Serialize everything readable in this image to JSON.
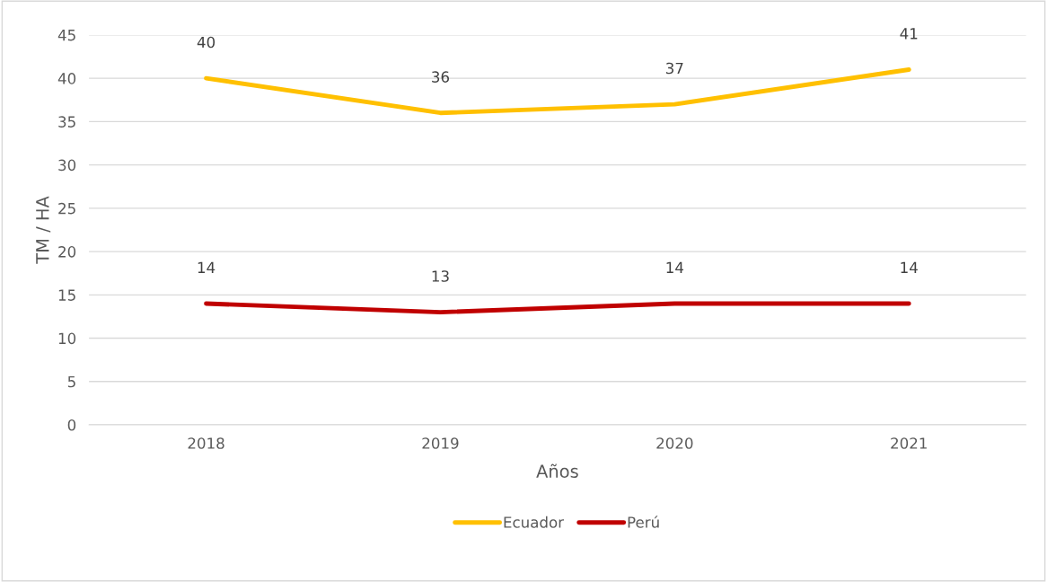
{
  "chart_data": {
    "type": "line",
    "xlabel": "Años",
    "ylabel": "TM / HA",
    "categories": [
      "2018",
      "2019",
      "2020",
      "2021"
    ],
    "series": [
      {
        "name": "Ecuador",
        "color": "#ffc000",
        "values": [
          40,
          36,
          37,
          41
        ]
      },
      {
        "name": "Perú",
        "color": "#c00000",
        "values": [
          14,
          13,
          14,
          14
        ]
      }
    ],
    "ylim": [
      0,
      45
    ],
    "yticks": [
      0,
      5,
      10,
      15,
      20,
      25,
      30,
      35,
      40,
      45
    ],
    "grid": "y",
    "legend": "bottom",
    "data_labels": true,
    "marker": "none",
    "line_style": "solid"
  }
}
